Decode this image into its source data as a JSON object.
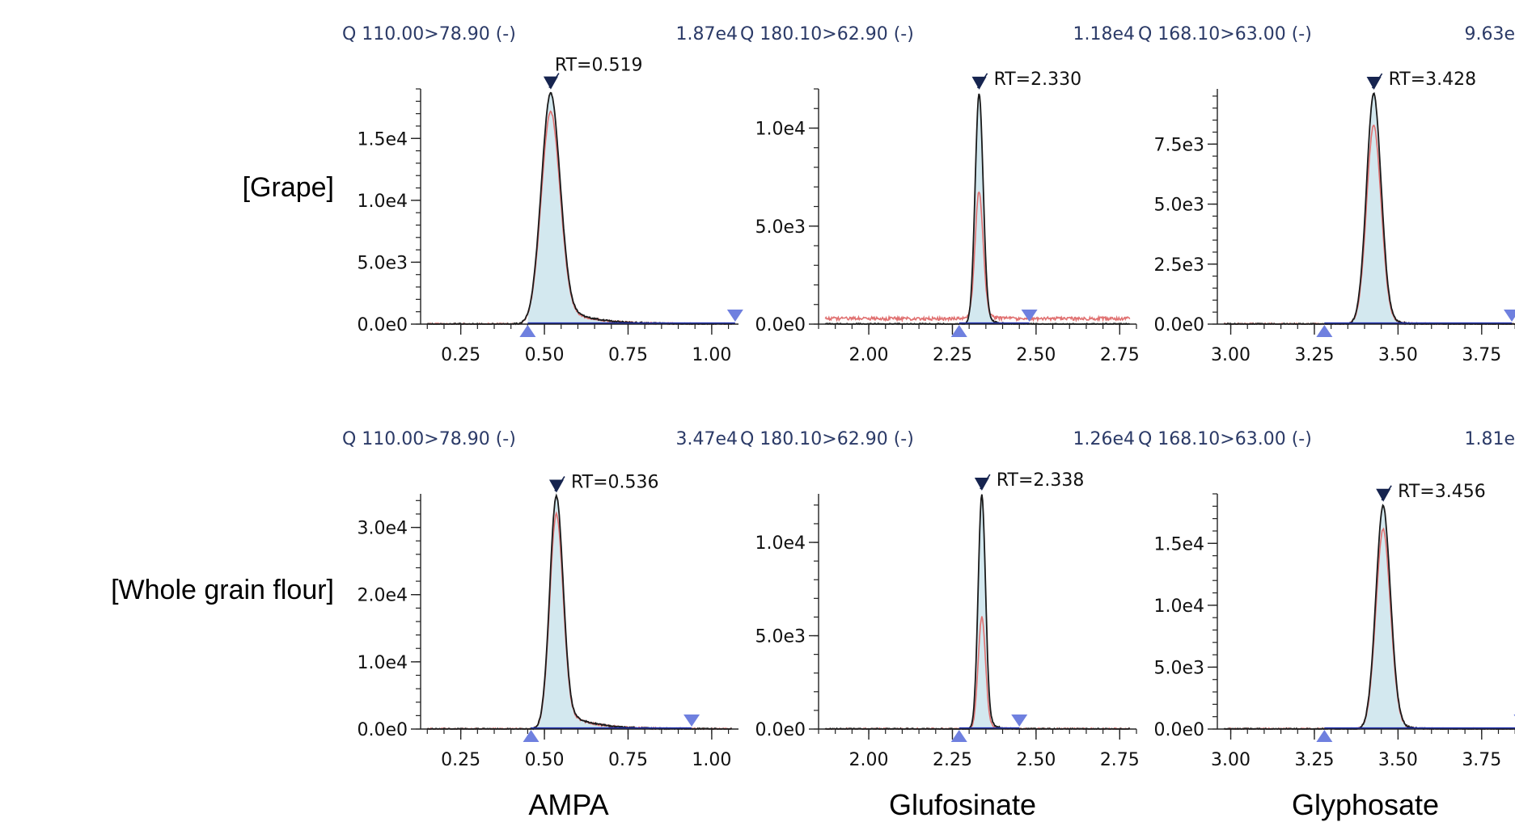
{
  "colors": {
    "fill": "#d3e8ef",
    "trace_main": "#1a1a1a",
    "trace_confirm": "#e07070",
    "baseline": "#1f2fb0",
    "marker_apex": "#16244f",
    "marker_integration": "#6f80df",
    "header_text": "#2b3a67"
  },
  "row_labels": [
    "[Grape]",
    "[Whole grain flour]"
  ],
  "column_labels": [
    "AMPA",
    "Glufosinate",
    "Glyphosate"
  ],
  "chart_data": [
    {
      "type": "line",
      "row": 0,
      "col": 0,
      "header": "Q 110.00>78.90 (-)",
      "intensity": "1.87e4",
      "rt_label": "RT=0.519",
      "rt": 0.519,
      "xlim": [
        0.13,
        1.08
      ],
      "ylim": [
        0,
        19000
      ],
      "xticks": [
        0.25,
        0.5,
        0.75,
        1.0
      ],
      "xtick_labels": [
        "0.25",
        "0.50",
        "0.75",
        "1.00"
      ],
      "yticks": [
        0,
        5000,
        10000,
        15000
      ],
      "ytick_labels": [
        "0.0e0",
        "5.0e3",
        "1.0e4",
        "1.5e4"
      ],
      "start": 0.45,
      "end": 1.07,
      "width": 0.028,
      "tail": 0.09,
      "peak_main": 18700,
      "peak_confirm": 17200,
      "noise": 0
    },
    {
      "type": "line",
      "row": 0,
      "col": 1,
      "header": "Q 180.10>62.90 (-)",
      "intensity": "1.18e4",
      "rt_label": "RT=2.330",
      "rt": 2.33,
      "xlim": [
        1.85,
        2.8
      ],
      "ylim": [
        0,
        12000
      ],
      "xticks": [
        2.0,
        2.25,
        2.5,
        2.75
      ],
      "xtick_labels": [
        "2.00",
        "2.25",
        "2.50",
        "2.75"
      ],
      "yticks": [
        0,
        5000,
        10000
      ],
      "ytick_labels": [
        "0.0e0",
        "5.0e3",
        "1.0e4"
      ],
      "start": 2.27,
      "end": 2.48,
      "width": 0.012,
      "tail": 0.02,
      "peak_main": 11800,
      "peak_confirm": 6500,
      "noise": 280
    },
    {
      "type": "line",
      "row": 0,
      "col": 2,
      "header": "Q 168.10>63.00 (-)",
      "intensity": "9.63e",
      "rt_label": "RT=3.428",
      "rt": 3.428,
      "xlim": [
        2.96,
        3.91
      ],
      "ylim": [
        0,
        9800
      ],
      "xticks": [
        3.0,
        3.25,
        3.5,
        3.75
      ],
      "xtick_labels": [
        "3.00",
        "3.25",
        "3.50",
        "3.75"
      ],
      "yticks": [
        0,
        2500,
        5000,
        7500
      ],
      "ytick_labels": [
        "0.0e0",
        "2.5e3",
        "5.0e3",
        "7.5e3"
      ],
      "start": 3.28,
      "end": 3.84,
      "width": 0.022,
      "tail": 0.03,
      "peak_main": 9630,
      "peak_confirm": 8300,
      "noise": 0
    },
    {
      "type": "line",
      "row": 1,
      "col": 0,
      "header": "Q 110.00>78.90 (-)",
      "intensity": "3.47e4",
      "rt_label": "RT=0.536",
      "rt": 0.536,
      "xlim": [
        0.13,
        1.08
      ],
      "ylim": [
        0,
        35000
      ],
      "xticks": [
        0.25,
        0.5,
        0.75,
        1.0
      ],
      "xtick_labels": [
        "0.25",
        "0.50",
        "0.75",
        "1.00"
      ],
      "yticks": [
        0,
        10000,
        20000,
        30000
      ],
      "ytick_labels": [
        "0.0e0",
        "1.0e4",
        "2.0e4",
        "3.0e4"
      ],
      "start": 0.46,
      "end": 0.94,
      "width": 0.02,
      "tail": 0.08,
      "peak_main": 34700,
      "peak_confirm": 32000,
      "noise": 0
    },
    {
      "type": "line",
      "row": 1,
      "col": 1,
      "header": "Q 180.10>62.90 (-)",
      "intensity": "1.26e4",
      "rt_label": "RT=2.338",
      "rt": 2.338,
      "xlim": [
        1.85,
        2.8
      ],
      "ylim": [
        0,
        12600
      ],
      "xticks": [
        2.0,
        2.25,
        2.5,
        2.75
      ],
      "xtick_labels": [
        "2.00",
        "2.25",
        "2.50",
        "2.75"
      ],
      "yticks": [
        0,
        5000,
        10000
      ],
      "ytick_labels": [
        "0.0e0",
        "5.0e3",
        "1.0e4"
      ],
      "start": 2.27,
      "end": 2.45,
      "width": 0.011,
      "tail": 0.02,
      "peak_main": 12600,
      "peak_confirm": 6000,
      "noise": 0
    },
    {
      "type": "line",
      "row": 1,
      "col": 2,
      "header": "Q 168.10>63.00 (-)",
      "intensity": "1.81e",
      "rt_label": "RT=3.456",
      "rt": 3.456,
      "xlim": [
        2.96,
        3.91
      ],
      "ylim": [
        0,
        19000
      ],
      "xticks": [
        3.0,
        3.25,
        3.5,
        3.75
      ],
      "xtick_labels": [
        "3.00",
        "3.25",
        "3.50",
        "3.75"
      ],
      "yticks": [
        0,
        5000,
        10000,
        15000
      ],
      "ytick_labels": [
        "0.0e0",
        "5.0e3",
        "1.0e4",
        "1.5e4"
      ],
      "start": 3.28,
      "end": 3.87,
      "width": 0.022,
      "tail": 0.03,
      "peak_main": 18100,
      "peak_confirm": 16200,
      "noise": 0
    }
  ]
}
